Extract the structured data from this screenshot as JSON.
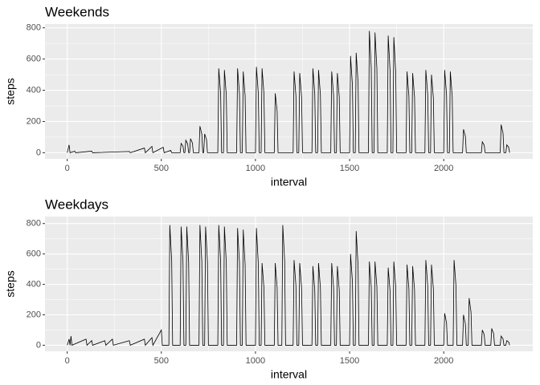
{
  "chart_data": [
    {
      "type": "line",
      "title": "Weekends",
      "x_label": "interval",
      "y_label": "steps",
      "color": "#000000",
      "grid": true,
      "xlim": [
        -118,
        2473
      ],
      "xticks": [
        0,
        500,
        1000,
        1500,
        2000
      ],
      "ylim": [
        -39,
        824
      ],
      "yticks": [
        0,
        200,
        400,
        600,
        800
      ],
      "x": [
        0,
        10,
        15,
        40,
        45,
        130,
        135,
        330,
        335,
        410,
        415,
        450,
        455,
        510,
        515,
        550,
        555,
        600,
        605,
        615,
        620,
        625,
        630,
        640,
        645,
        650,
        655,
        665,
        670,
        700,
        705,
        715,
        720,
        725,
        730,
        740,
        745,
        800,
        805,
        815,
        820,
        830,
        835,
        845,
        850,
        900,
        905,
        915,
        920,
        930,
        935,
        945,
        950,
        1000,
        1005,
        1015,
        1020,
        1030,
        1035,
        1045,
        1050,
        1100,
        1105,
        1115,
        1120,
        1200,
        1205,
        1215,
        1220,
        1230,
        1235,
        1245,
        1250,
        1300,
        1305,
        1315,
        1320,
        1330,
        1335,
        1345,
        1350,
        1400,
        1405,
        1415,
        1420,
        1430,
        1435,
        1445,
        1450,
        1500,
        1505,
        1515,
        1520,
        1530,
        1535,
        1545,
        1550,
        1600,
        1605,
        1615,
        1620,
        1630,
        1635,
        1645,
        1650,
        1700,
        1705,
        1715,
        1720,
        1730,
        1735,
        1745,
        1750,
        1800,
        1805,
        1815,
        1820,
        1830,
        1835,
        1845,
        1850,
        1900,
        1905,
        1915,
        1920,
        1930,
        1935,
        1945,
        1950,
        2000,
        2005,
        2015,
        2020,
        2030,
        2035,
        2045,
        2050,
        2100,
        2105,
        2115,
        2120,
        2200,
        2205,
        2215,
        2220,
        2300,
        2305,
        2315,
        2320,
        2330,
        2335,
        2345,
        2350
      ],
      "values": [
        0,
        50,
        0,
        10,
        0,
        10,
        0,
        8,
        0,
        30,
        0,
        40,
        0,
        35,
        0,
        15,
        0,
        0,
        60,
        42,
        0,
        0,
        80,
        56,
        0,
        0,
        90,
        63,
        0,
        0,
        170,
        119,
        0,
        0,
        120,
        84,
        0,
        0,
        540,
        378,
        0,
        0,
        530,
        371,
        0,
        0,
        540,
        378,
        0,
        0,
        520,
        364,
        0,
        0,
        550,
        385,
        0,
        0,
        540,
        378,
        0,
        0,
        380,
        266,
        0,
        0,
        520,
        364,
        0,
        0,
        510,
        357,
        0,
        0,
        540,
        378,
        0,
        0,
        530,
        371,
        0,
        0,
        520,
        364,
        0,
        0,
        510,
        357,
        0,
        0,
        620,
        434,
        0,
        0,
        640,
        448,
        0,
        0,
        780,
        546,
        0,
        0,
        770,
        539,
        0,
        0,
        750,
        525,
        0,
        0,
        740,
        518,
        0,
        0,
        520,
        364,
        0,
        0,
        510,
        357,
        0,
        0,
        530,
        371,
        0,
        0,
        500,
        350,
        0,
        0,
        530,
        371,
        0,
        0,
        520,
        364,
        0,
        0,
        150,
        105,
        0,
        0,
        70,
        49,
        0,
        0,
        180,
        126,
        0,
        0,
        50,
        35,
        0
      ]
    },
    {
      "type": "line",
      "title": "Weekdays",
      "x_label": "interval",
      "y_label": "steps",
      "color": "#000000",
      "grid": true,
      "xlim": [
        -118,
        2473
      ],
      "xticks": [
        0,
        500,
        1000,
        1500,
        2000
      ],
      "ylim": [
        -40,
        846
      ],
      "yticks": [
        0,
        200,
        400,
        600,
        800
      ],
      "x": [
        0,
        10,
        15,
        20,
        25,
        100,
        105,
        130,
        135,
        200,
        205,
        240,
        245,
        330,
        335,
        410,
        415,
        450,
        455,
        500,
        505,
        540,
        545,
        555,
        560,
        600,
        605,
        615,
        620,
        630,
        635,
        645,
        650,
        700,
        705,
        715,
        720,
        730,
        735,
        745,
        750,
        800,
        805,
        815,
        820,
        830,
        835,
        845,
        850,
        900,
        905,
        915,
        920,
        930,
        935,
        945,
        950,
        1000,
        1005,
        1015,
        1020,
        1030,
        1035,
        1045,
        1050,
        1100,
        1105,
        1115,
        1120,
        1140,
        1145,
        1155,
        1160,
        1200,
        1205,
        1215,
        1220,
        1230,
        1235,
        1245,
        1250,
        1300,
        1305,
        1315,
        1320,
        1330,
        1335,
        1345,
        1350,
        1400,
        1405,
        1415,
        1420,
        1430,
        1435,
        1445,
        1450,
        1500,
        1505,
        1515,
        1520,
        1530,
        1535,
        1545,
        1550,
        1600,
        1605,
        1615,
        1620,
        1630,
        1635,
        1645,
        1650,
        1700,
        1705,
        1715,
        1720,
        1730,
        1735,
        1745,
        1750,
        1800,
        1805,
        1815,
        1820,
        1830,
        1835,
        1845,
        1850,
        1900,
        1905,
        1915,
        1920,
        1930,
        1935,
        1945,
        1950,
        2000,
        2005,
        2015,
        2020,
        2050,
        2055,
        2065,
        2070,
        2100,
        2105,
        2115,
        2120,
        2130,
        2135,
        2145,
        2150,
        2200,
        2205,
        2215,
        2220,
        2250,
        2255,
        2265,
        2270,
        2300,
        2305,
        2315,
        2320,
        2330,
        2335,
        2345,
        2350
      ],
      "values": [
        0,
        40,
        0,
        60,
        0,
        40,
        0,
        30,
        0,
        30,
        0,
        40,
        0,
        30,
        0,
        40,
        0,
        50,
        0,
        100,
        0,
        0,
        790,
        553,
        0,
        0,
        780,
        546,
        0,
        0,
        780,
        546,
        0,
        0,
        790,
        553,
        0,
        0,
        780,
        546,
        0,
        0,
        790,
        553,
        0,
        0,
        780,
        546,
        0,
        0,
        770,
        539,
        0,
        0,
        760,
        532,
        0,
        0,
        770,
        539,
        0,
        0,
        540,
        378,
        0,
        0,
        540,
        378,
        0,
        0,
        790,
        553,
        0,
        0,
        560,
        392,
        0,
        0,
        540,
        378,
        0,
        0,
        520,
        364,
        0,
        0,
        540,
        378,
        0,
        0,
        540,
        378,
        0,
        0,
        520,
        364,
        0,
        0,
        600,
        420,
        0,
        0,
        750,
        525,
        0,
        0,
        550,
        385,
        0,
        0,
        550,
        385,
        0,
        0,
        510,
        357,
        0,
        0,
        550,
        385,
        0,
        0,
        530,
        371,
        0,
        0,
        520,
        364,
        0,
        0,
        560,
        392,
        0,
        0,
        530,
        371,
        0,
        0,
        210,
        147,
        0,
        0,
        560,
        392,
        0,
        0,
        200,
        140,
        0,
        0,
        310,
        217,
        0,
        0,
        100,
        70,
        0,
        0,
        110,
        77,
        0,
        0,
        60,
        42,
        0,
        0,
        30,
        21,
        0
      ]
    }
  ]
}
